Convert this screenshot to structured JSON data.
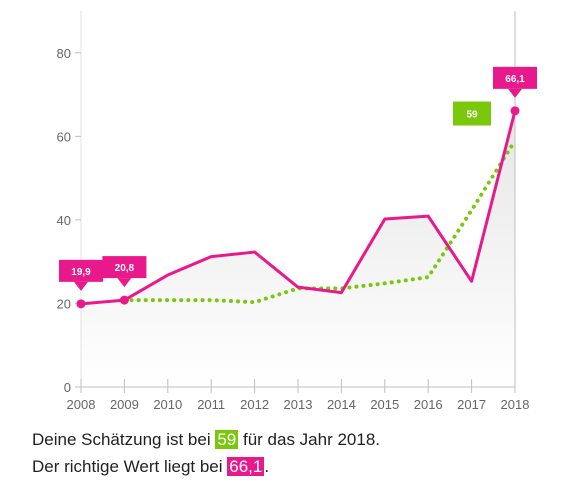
{
  "colors": {
    "actual": "#e8198b",
    "guess": "#7ac70c",
    "axis": "#999999",
    "fill": "#efefef"
  },
  "chart_data": {
    "type": "line",
    "x": [
      2008,
      2009,
      2010,
      2011,
      2012,
      2013,
      2014,
      2015,
      2016,
      2017,
      2018
    ],
    "ylim": [
      0,
      90
    ],
    "yticks": [
      0,
      20,
      40,
      60,
      80
    ],
    "xtick_labels": [
      "2008",
      "2009",
      "2010",
      "2011",
      "2012",
      "2013",
      "2014",
      "2015",
      "2016",
      "2017",
      "2018"
    ],
    "ytick_labels": [
      "0",
      "20",
      "40",
      "60",
      "80"
    ],
    "grid": false,
    "series": [
      {
        "key": "actual",
        "values": [
          19.9,
          20.8,
          26.8,
          31.2,
          32.3,
          23.9,
          22.6,
          40.2,
          40.9,
          25.3,
          66.1
        ]
      },
      {
        "key": "guess",
        "values": [
          null,
          20.8,
          20.8,
          20.8,
          20.3,
          23.6,
          23.6,
          24.8,
          26.3,
          42.3,
          59.0
        ],
        "style": "dotted"
      }
    ],
    "annotations": [
      {
        "x": 2008,
        "y": 19.9,
        "label": "19,9",
        "series": "actual"
      },
      {
        "x": 2009,
        "y": 20.8,
        "label": "20,8",
        "series": "actual"
      },
      {
        "x": 2018,
        "y": 66.1,
        "label": "66,1",
        "series": "actual"
      },
      {
        "x": 2018,
        "y": 59.0,
        "label": "59",
        "series": "guess"
      }
    ]
  },
  "caption": {
    "line1_before": "Deine Schätzung ist bei ",
    "guess_value": "59",
    "line1_after": " für das Jahr 2018.",
    "line2_before": "Der richtige Wert liegt bei ",
    "actual_value": "66,1",
    "line2_after": "."
  }
}
